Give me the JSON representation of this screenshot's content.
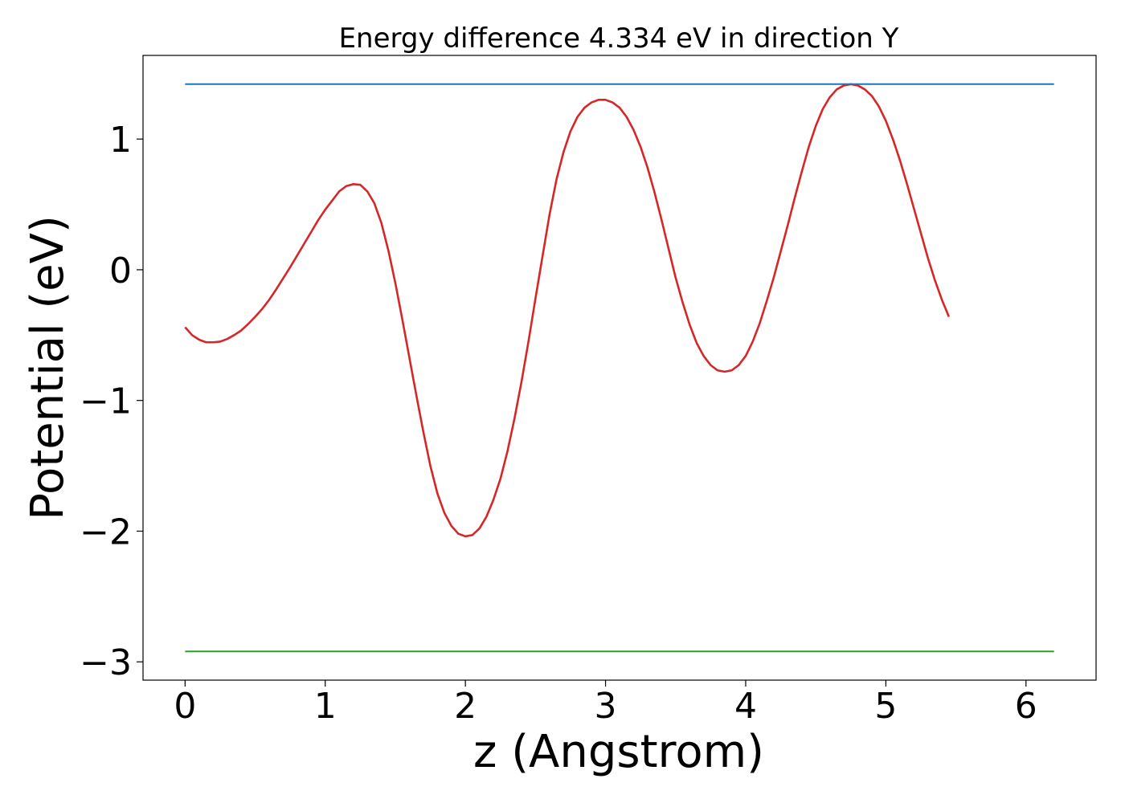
{
  "chart_data": {
    "type": "line",
    "title": "Energy difference 4.334 eV in direction Y",
    "xlabel": "z (Angstrom)",
    "ylabel": "Potential (eV)",
    "xlim": [
      -0.3,
      6.5
    ],
    "ylim": [
      -3.14,
      1.64
    ],
    "grid": false,
    "x_ticks": [
      0,
      1,
      2,
      3,
      4,
      5,
      6
    ],
    "x_tick_labels": [
      "0",
      "1",
      "2",
      "3",
      "4",
      "5",
      "6"
    ],
    "y_ticks": [
      -3,
      -2,
      -1,
      0,
      1
    ],
    "y_tick_labels": [
      "−3",
      "−2",
      "−1",
      "0",
      "1"
    ],
    "series": [
      {
        "color": "#d62728",
        "points": [
          [
            0.0,
            -0.44
          ],
          [
            0.05,
            -0.5
          ],
          [
            0.1,
            -0.535
          ],
          [
            0.15,
            -0.555
          ],
          [
            0.2,
            -0.555
          ],
          [
            0.25,
            -0.55
          ],
          [
            0.3,
            -0.53
          ],
          [
            0.35,
            -0.5
          ],
          [
            0.4,
            -0.465
          ],
          [
            0.45,
            -0.415
          ],
          [
            0.5,
            -0.36
          ],
          [
            0.55,
            -0.3
          ],
          [
            0.6,
            -0.23
          ],
          [
            0.65,
            -0.15
          ],
          [
            0.7,
            -0.065
          ],
          [
            0.75,
            0.02
          ],
          [
            0.8,
            0.11
          ],
          [
            0.85,
            0.2
          ],
          [
            0.9,
            0.29
          ],
          [
            0.95,
            0.38
          ],
          [
            1.0,
            0.46
          ],
          [
            1.05,
            0.53
          ],
          [
            1.1,
            0.6
          ],
          [
            1.15,
            0.64
          ],
          [
            1.2,
            0.655
          ],
          [
            1.25,
            0.65
          ],
          [
            1.3,
            0.6
          ],
          [
            1.35,
            0.51
          ],
          [
            1.4,
            0.36
          ],
          [
            1.45,
            0.15
          ],
          [
            1.5,
            -0.1
          ],
          [
            1.55,
            -0.38
          ],
          [
            1.6,
            -0.67
          ],
          [
            1.65,
            -0.96
          ],
          [
            1.7,
            -1.24
          ],
          [
            1.75,
            -1.5
          ],
          [
            1.8,
            -1.71
          ],
          [
            1.85,
            -1.86
          ],
          [
            1.9,
            -1.96
          ],
          [
            1.95,
            -2.02
          ],
          [
            2.0,
            -2.04
          ],
          [
            2.05,
            -2.03
          ],
          [
            2.1,
            -1.98
          ],
          [
            2.15,
            -1.89
          ],
          [
            2.2,
            -1.76
          ],
          [
            2.25,
            -1.6
          ],
          [
            2.3,
            -1.39
          ],
          [
            2.35,
            -1.14
          ],
          [
            2.4,
            -0.86
          ],
          [
            2.45,
            -0.55
          ],
          [
            2.5,
            -0.22
          ],
          [
            2.55,
            0.1
          ],
          [
            2.6,
            0.42
          ],
          [
            2.65,
            0.69
          ],
          [
            2.7,
            0.9
          ],
          [
            2.75,
            1.06
          ],
          [
            2.8,
            1.17
          ],
          [
            2.85,
            1.24
          ],
          [
            2.9,
            1.28
          ],
          [
            2.95,
            1.3
          ],
          [
            3.0,
            1.3
          ],
          [
            3.05,
            1.28
          ],
          [
            3.1,
            1.24
          ],
          [
            3.15,
            1.17
          ],
          [
            3.2,
            1.07
          ],
          [
            3.25,
            0.94
          ],
          [
            3.3,
            0.78
          ],
          [
            3.35,
            0.59
          ],
          [
            3.4,
            0.38
          ],
          [
            3.45,
            0.16
          ],
          [
            3.5,
            -0.06
          ],
          [
            3.55,
            -0.25
          ],
          [
            3.6,
            -0.42
          ],
          [
            3.65,
            -0.56
          ],
          [
            3.7,
            -0.66
          ],
          [
            3.75,
            -0.73
          ],
          [
            3.8,
            -0.77
          ],
          [
            3.85,
            -0.78
          ],
          [
            3.9,
            -0.77
          ],
          [
            3.95,
            -0.73
          ],
          [
            4.0,
            -0.66
          ],
          [
            4.05,
            -0.55
          ],
          [
            4.1,
            -0.41
          ],
          [
            4.15,
            -0.24
          ],
          [
            4.2,
            -0.06
          ],
          [
            4.25,
            0.14
          ],
          [
            4.3,
            0.34
          ],
          [
            4.35,
            0.55
          ],
          [
            4.4,
            0.75
          ],
          [
            4.45,
            0.94
          ],
          [
            4.5,
            1.1
          ],
          [
            4.55,
            1.23
          ],
          [
            4.6,
            1.32
          ],
          [
            4.65,
            1.38
          ],
          [
            4.7,
            1.41
          ],
          [
            4.75,
            1.42
          ],
          [
            4.8,
            1.41
          ],
          [
            4.85,
            1.38
          ],
          [
            4.9,
            1.33
          ],
          [
            4.95,
            1.25
          ],
          [
            5.0,
            1.14
          ],
          [
            5.05,
            1.0
          ],
          [
            5.1,
            0.84
          ],
          [
            5.15,
            0.66
          ],
          [
            5.2,
            0.47
          ],
          [
            5.25,
            0.28
          ],
          [
            5.3,
            0.09
          ],
          [
            5.35,
            -0.08
          ],
          [
            5.4,
            -0.23
          ],
          [
            5.45,
            -0.36
          ]
        ]
      },
      {
        "color": "#1f77b4",
        "points": [
          [
            0.0,
            1.42
          ],
          [
            6.2,
            1.42
          ]
        ]
      },
      {
        "color": "#2ca02c",
        "points": [
          [
            0.0,
            -2.92
          ],
          [
            6.2,
            -2.92
          ]
        ]
      }
    ]
  }
}
